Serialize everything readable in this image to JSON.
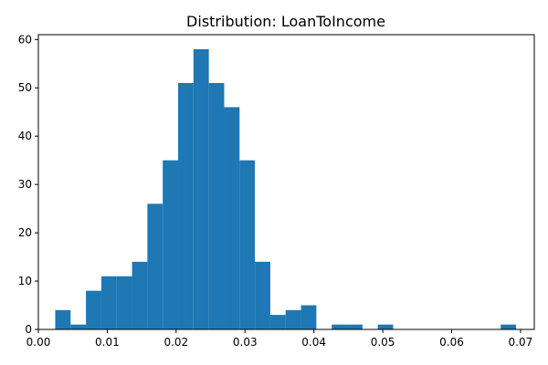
{
  "chart_data": {
    "type": "bar",
    "title": "Distribution: LoanToIncome",
    "xlabel": "",
    "ylabel": "",
    "xlim": [
      0.0,
      0.072
    ],
    "ylim": [
      0,
      61
    ],
    "x_ticks": [
      0.0,
      0.01,
      0.02,
      0.03,
      0.04,
      0.05,
      0.06,
      0.07
    ],
    "x_tick_labels": [
      "0.00",
      "0.01",
      "0.02",
      "0.03",
      "0.04",
      "0.05",
      "0.06",
      "0.07"
    ],
    "y_ticks": [
      0,
      10,
      20,
      30,
      40,
      50,
      60
    ],
    "y_tick_labels": [
      "0",
      "10",
      "20",
      "30",
      "40",
      "50",
      "60"
    ],
    "grid": false,
    "bar_color": "#1f77b4",
    "bins": [
      {
        "x0": 0.00245,
        "x1": 0.00468,
        "count": 4
      },
      {
        "x0": 0.00468,
        "x1": 0.00691,
        "count": 1
      },
      {
        "x0": 0.00691,
        "x1": 0.00914,
        "count": 8
      },
      {
        "x0": 0.00914,
        "x1": 0.01137,
        "count": 11
      },
      {
        "x0": 0.01137,
        "x1": 0.0136,
        "count": 11
      },
      {
        "x0": 0.0136,
        "x1": 0.01583,
        "count": 14
      },
      {
        "x0": 0.01583,
        "x1": 0.01806,
        "count": 26
      },
      {
        "x0": 0.01806,
        "x1": 0.02029,
        "count": 35
      },
      {
        "x0": 0.02029,
        "x1": 0.02252,
        "count": 51
      },
      {
        "x0": 0.02252,
        "x1": 0.02475,
        "count": 58
      },
      {
        "x0": 0.02475,
        "x1": 0.02698,
        "count": 51
      },
      {
        "x0": 0.02698,
        "x1": 0.02921,
        "count": 46
      },
      {
        "x0": 0.02921,
        "x1": 0.03144,
        "count": 35
      },
      {
        "x0": 0.03144,
        "x1": 0.03367,
        "count": 14
      },
      {
        "x0": 0.03367,
        "x1": 0.0359,
        "count": 3
      },
      {
        "x0": 0.0359,
        "x1": 0.03813,
        "count": 4
      },
      {
        "x0": 0.03813,
        "x1": 0.04036,
        "count": 5
      },
      {
        "x0": 0.04036,
        "x1": 0.04259,
        "count": 0
      },
      {
        "x0": 0.04259,
        "x1": 0.04482,
        "count": 1
      },
      {
        "x0": 0.04482,
        "x1": 0.04705,
        "count": 1
      },
      {
        "x0": 0.04705,
        "x1": 0.04928,
        "count": 0
      },
      {
        "x0": 0.04928,
        "x1": 0.05151,
        "count": 1
      },
      {
        "x0": 0.05151,
        "x1": 0.05374,
        "count": 0
      },
      {
        "x0": 0.05374,
        "x1": 0.05597,
        "count": 0
      },
      {
        "x0": 0.05597,
        "x1": 0.0582,
        "count": 0
      },
      {
        "x0": 0.0582,
        "x1": 0.06043,
        "count": 0
      },
      {
        "x0": 0.06043,
        "x1": 0.06266,
        "count": 0
      },
      {
        "x0": 0.06266,
        "x1": 0.06489,
        "count": 0
      },
      {
        "x0": 0.06489,
        "x1": 0.06712,
        "count": 0
      },
      {
        "x0": 0.06712,
        "x1": 0.06935,
        "count": 1
      }
    ]
  }
}
